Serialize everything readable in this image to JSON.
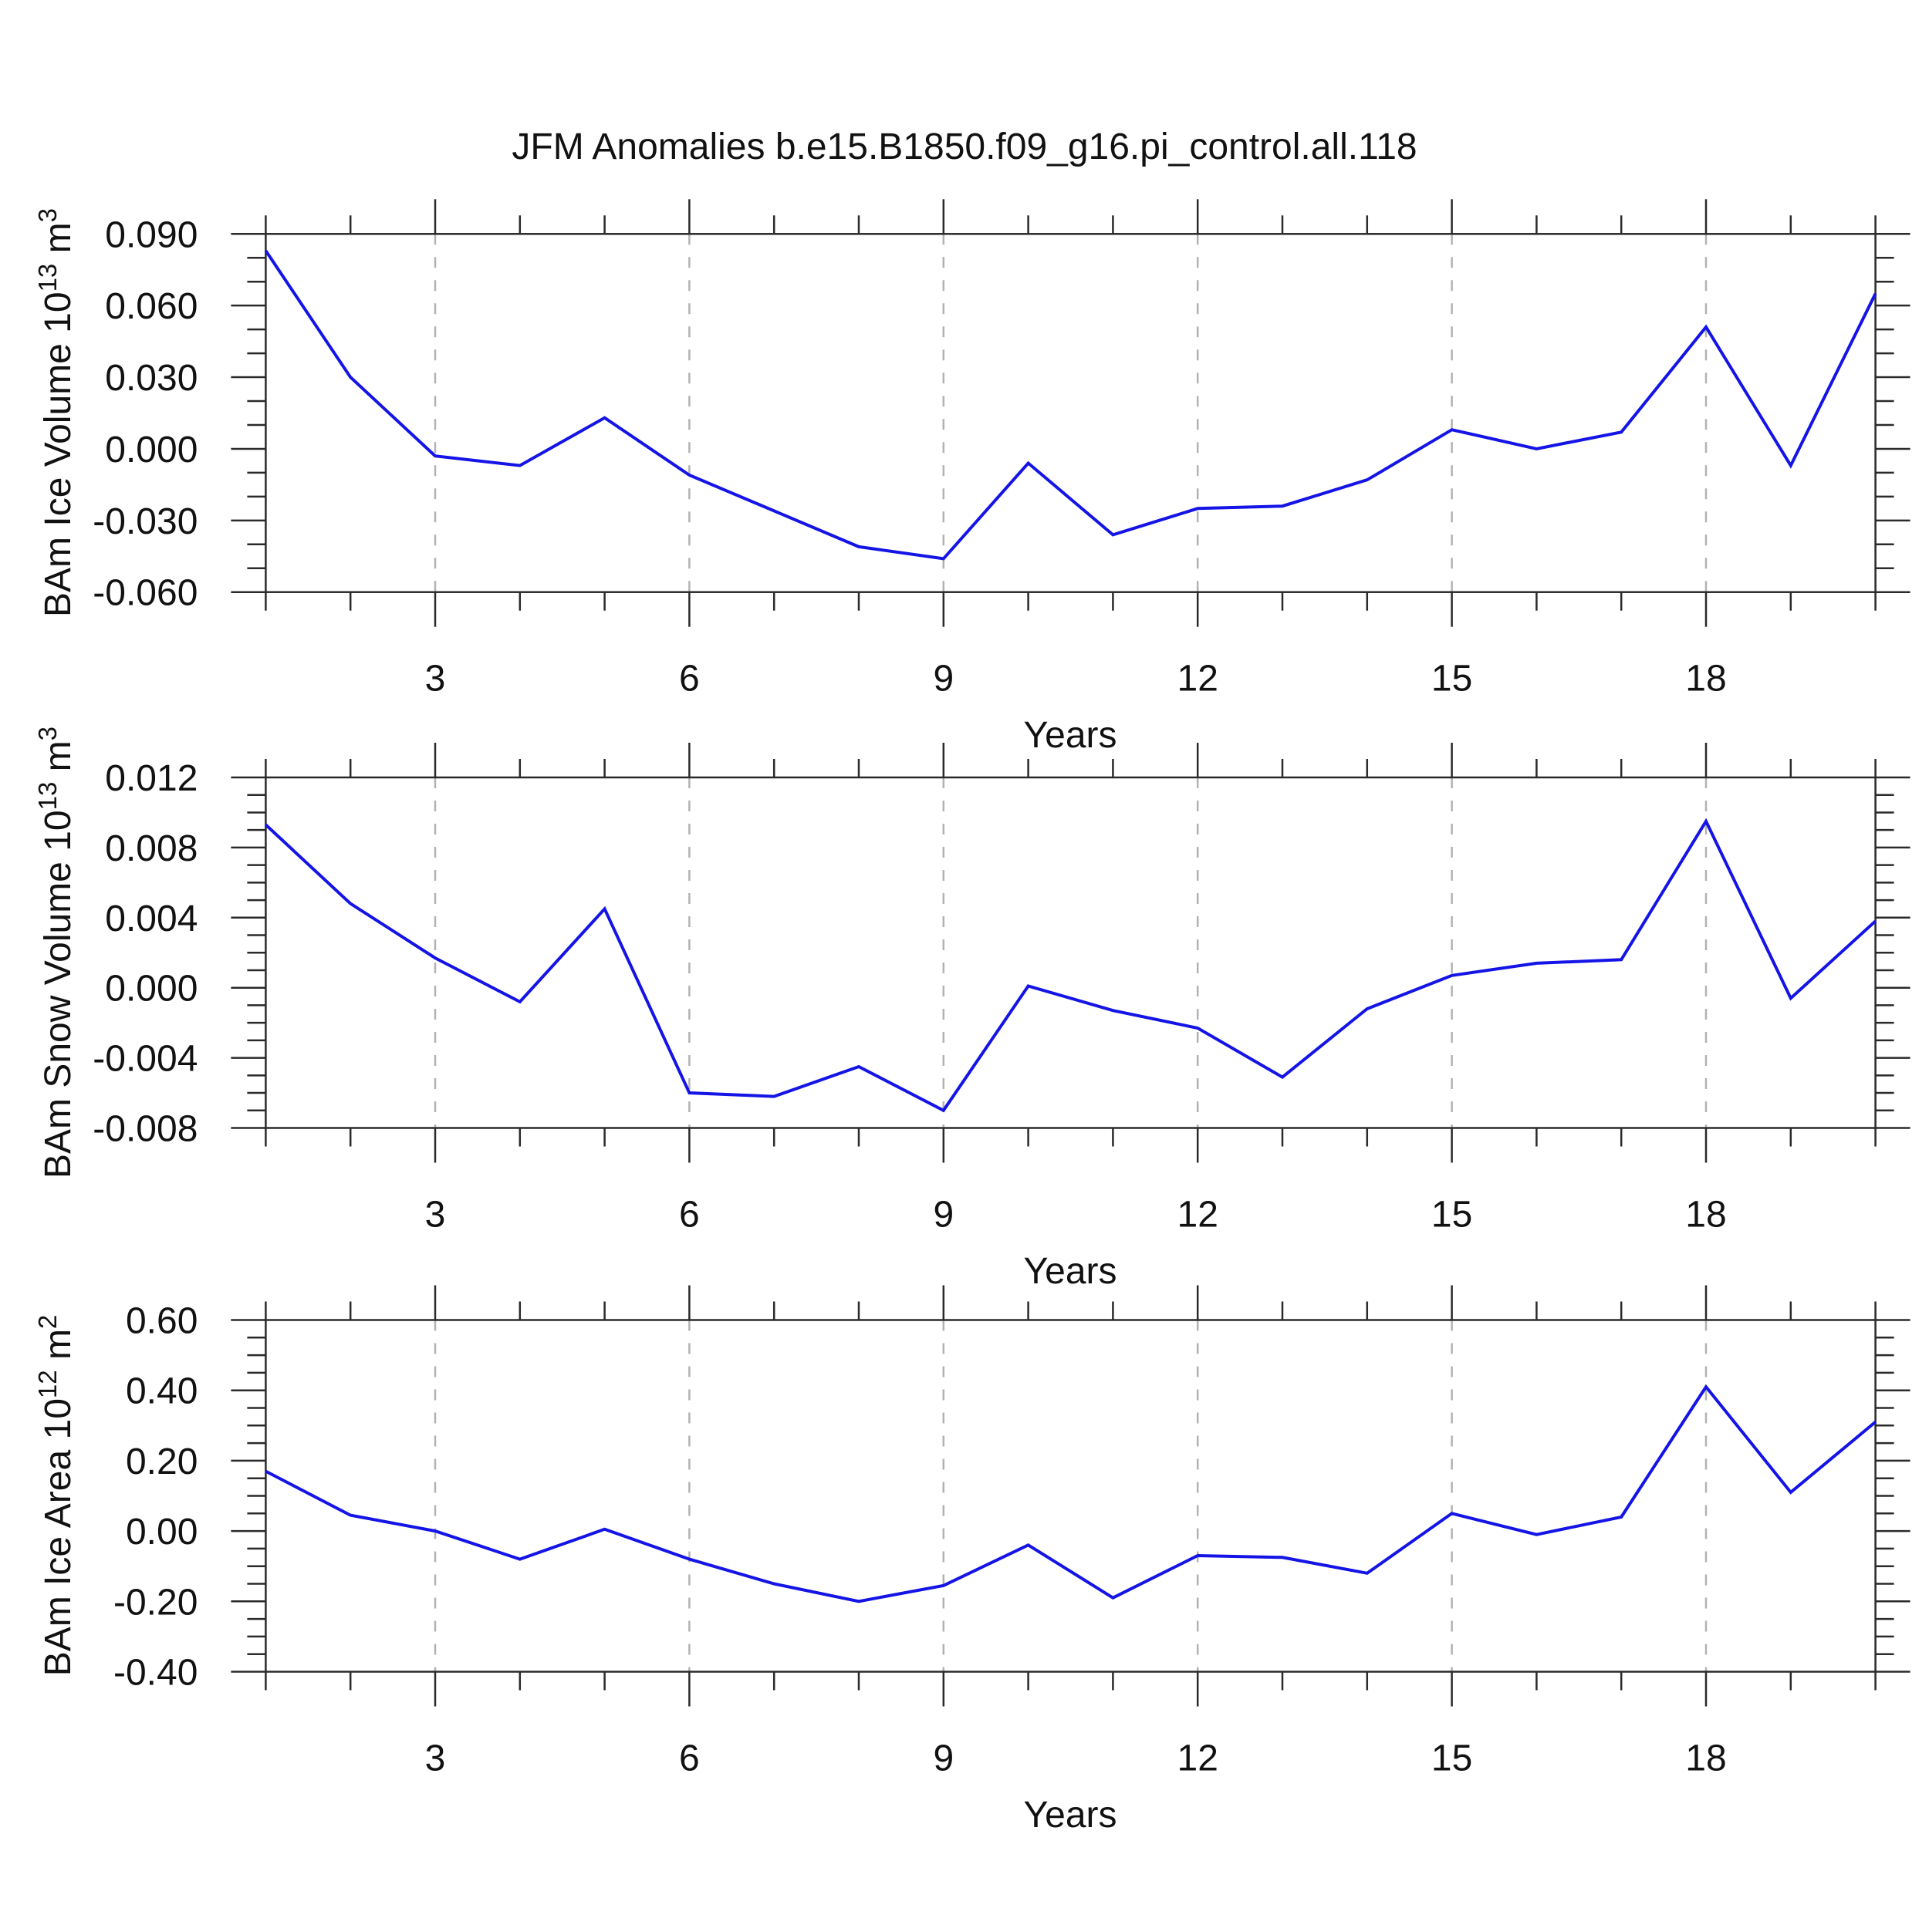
{
  "title": "JFM Anomalies b.e15.B1850.f09_g16.pi_control.all.118",
  "colors": {
    "line": "#1414e6",
    "grid": "#b2b2b2",
    "frame": "#2a2a2a",
    "background": "#ffffff"
  },
  "chart_data": [
    {
      "id": "ice-volume",
      "type": "line",
      "ylabel": {
        "text": "BAm Ice Volume 10",
        "sup": "13",
        "text2": " m",
        "sup2": "3"
      },
      "xlabel": "Years",
      "x": [
        1,
        2,
        3,
        4,
        5,
        6,
        7,
        8,
        9,
        10,
        11,
        12,
        13,
        14,
        15,
        16,
        17,
        18,
        19,
        20
      ],
      "values": [
        0.083,
        0.03,
        -0.003,
        -0.007,
        0.013,
        -0.011,
        -0.026,
        -0.041,
        -0.046,
        -0.006,
        -0.036,
        -0.025,
        -0.024,
        -0.013,
        0.008,
        0.0,
        0.007,
        0.051,
        -0.007,
        0.065
      ],
      "xlim": [
        1,
        20
      ],
      "ylim": [
        -0.06,
        0.09
      ],
      "yticks": [
        0.09,
        0.06,
        0.03,
        0.0,
        -0.03,
        -0.06
      ],
      "ytick_labels": [
        "0.090",
        "0.060",
        "0.030",
        "0.000",
        "-0.030",
        "-0.060"
      ],
      "yminor": 0.01,
      "xticks_major": [
        3,
        6,
        9,
        12,
        15,
        18
      ],
      "xtick_labels": [
        "3",
        "6",
        "9",
        "12",
        "15",
        "18"
      ],
      "xminor": 1,
      "grid": "vertical-dashed",
      "line_color": "#1414e6"
    },
    {
      "id": "snow-volume",
      "type": "line",
      "ylabel": {
        "text": "BAm Snow Volume 10",
        "sup": "13",
        "text2": " m",
        "sup2": "3"
      },
      "xlabel": "Years",
      "x": [
        1,
        2,
        3,
        4,
        5,
        6,
        7,
        8,
        9,
        10,
        11,
        12,
        13,
        14,
        15,
        16,
        17,
        18,
        19,
        20
      ],
      "values": [
        0.0093,
        0.0048,
        0.0017,
        -0.0008,
        0.0045,
        -0.006,
        -0.0062,
        -0.0045,
        -0.007,
        0.0001,
        -0.0013,
        -0.0023,
        -0.0051,
        -0.0012,
        0.0007,
        0.0014,
        0.0016,
        0.0095,
        -0.0006,
        0.0038
      ],
      "xlim": [
        1,
        20
      ],
      "ylim": [
        -0.008,
        0.012
      ],
      "yticks": [
        0.012,
        0.008,
        0.004,
        0.0,
        -0.004,
        -0.008
      ],
      "ytick_labels": [
        "0.012",
        "0.008",
        "0.004",
        "0.000",
        "-0.004",
        "-0.008"
      ],
      "yminor": 0.001,
      "xticks_major": [
        3,
        6,
        9,
        12,
        15,
        18
      ],
      "xtick_labels": [
        "3",
        "6",
        "9",
        "12",
        "15",
        "18"
      ],
      "xminor": 1,
      "grid": "vertical-dashed",
      "line_color": "#1414e6"
    },
    {
      "id": "ice-area",
      "type": "line",
      "ylabel": {
        "text": "BAm Ice Area 10",
        "sup": "12",
        "text2": " m",
        "sup2": "2"
      },
      "xlabel": "Years",
      "x": [
        1,
        2,
        3,
        4,
        5,
        6,
        7,
        8,
        9,
        10,
        11,
        12,
        13,
        14,
        15,
        16,
        17,
        18,
        19,
        20
      ],
      "values": [
        0.17,
        0.045,
        0.0,
        -0.08,
        0.005,
        -0.08,
        -0.15,
        -0.2,
        -0.155,
        -0.04,
        -0.19,
        -0.07,
        -0.075,
        -0.12,
        0.05,
        -0.01,
        0.04,
        0.41,
        0.11,
        0.31
      ],
      "xlim": [
        1,
        20
      ],
      "ylim": [
        -0.4,
        0.6
      ],
      "yticks": [
        0.6,
        0.4,
        0.2,
        0.0,
        -0.2,
        -0.4
      ],
      "ytick_labels": [
        "0.60",
        "0.40",
        "0.20",
        "0.00",
        "-0.20",
        "-0.40"
      ],
      "yminor": 0.05,
      "xticks_major": [
        3,
        6,
        9,
        12,
        15,
        18
      ],
      "xtick_labels": [
        "3",
        "6",
        "9",
        "12",
        "15",
        "18"
      ],
      "xminor": 1,
      "grid": "vertical-dashed",
      "line_color": "#1414e6"
    }
  ]
}
